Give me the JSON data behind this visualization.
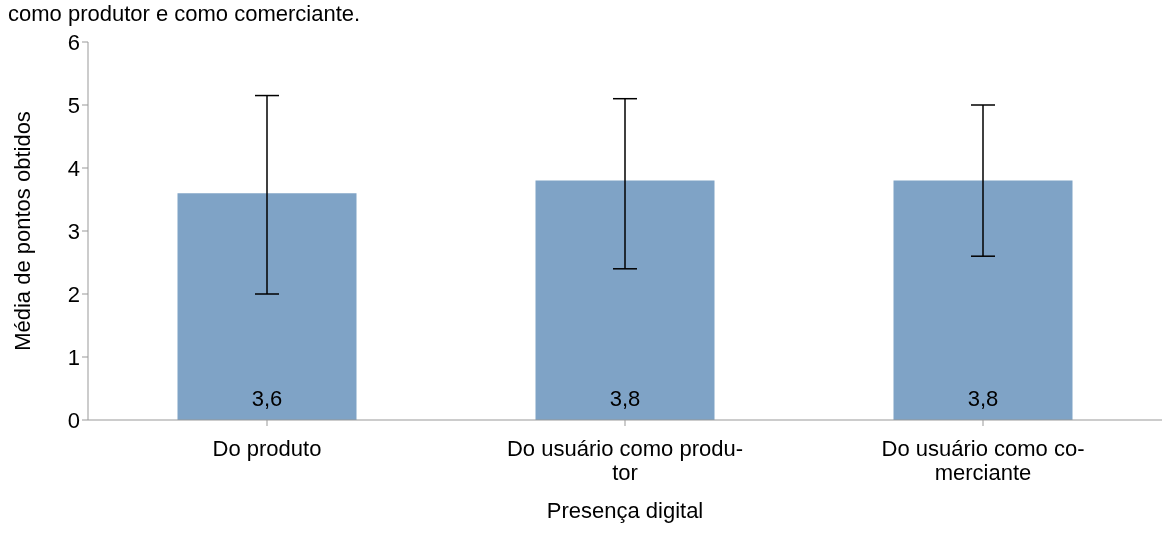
{
  "chart_data": {
    "type": "bar",
    "annotations": [
      "como produtor e como comerciante."
    ],
    "xlabel": "Presença digital",
    "ylabel": "Média de pontos obtidos",
    "categories": [
      "Do produto",
      "Do usuário como produ-\ntor",
      "Do usuário como  co-\nmerciante"
    ],
    "values": [
      3.6,
      3.8,
      3.8
    ],
    "errors": [
      [
        2.0,
        5.15
      ],
      [
        2.4,
        5.1
      ],
      [
        2.6,
        5.0
      ]
    ],
    "value_labels": [
      "3,6",
      "3,8",
      "3,8"
    ],
    "color": "#7fa3c6",
    "ylim": [
      0,
      6
    ],
    "yticks": [
      0,
      1,
      2,
      3,
      4,
      5,
      6
    ],
    "grid": false,
    "legend": false
  }
}
